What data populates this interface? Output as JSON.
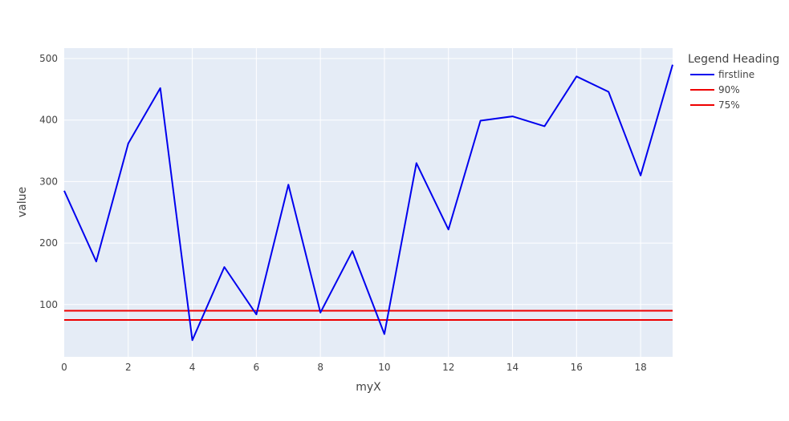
{
  "chart_data": {
    "type": "line",
    "xlabel": "myX",
    "ylabel": "value",
    "xlim": [
      0,
      19
    ],
    "ylim": [
      15,
      517
    ],
    "x_ticks": [
      0,
      2,
      4,
      6,
      8,
      10,
      12,
      14,
      16,
      18
    ],
    "y_ticks": [
      100,
      200,
      300,
      400,
      500
    ],
    "grid": true,
    "legend": {
      "title": "Legend Heading",
      "placement": "right"
    },
    "series": [
      {
        "name": "firstline",
        "color": "#0000ee",
        "x": [
          0,
          1,
          2,
          3,
          4,
          5,
          6,
          7,
          8,
          9,
          10,
          11,
          12,
          13,
          14,
          15,
          16,
          17,
          18,
          19
        ],
        "y": [
          285,
          170,
          362,
          452,
          42,
          161,
          84,
          295,
          87,
          187,
          52,
          330,
          222,
          399,
          406,
          390,
          471,
          446,
          310,
          490
        ]
      },
      {
        "name": "90%",
        "color": "#ee0000",
        "x": [
          0,
          19
        ],
        "y": [
          90,
          90
        ]
      },
      {
        "name": "75%",
        "color": "#ee0000",
        "x": [
          0,
          19
        ],
        "y": [
          75,
          75
        ]
      }
    ]
  }
}
